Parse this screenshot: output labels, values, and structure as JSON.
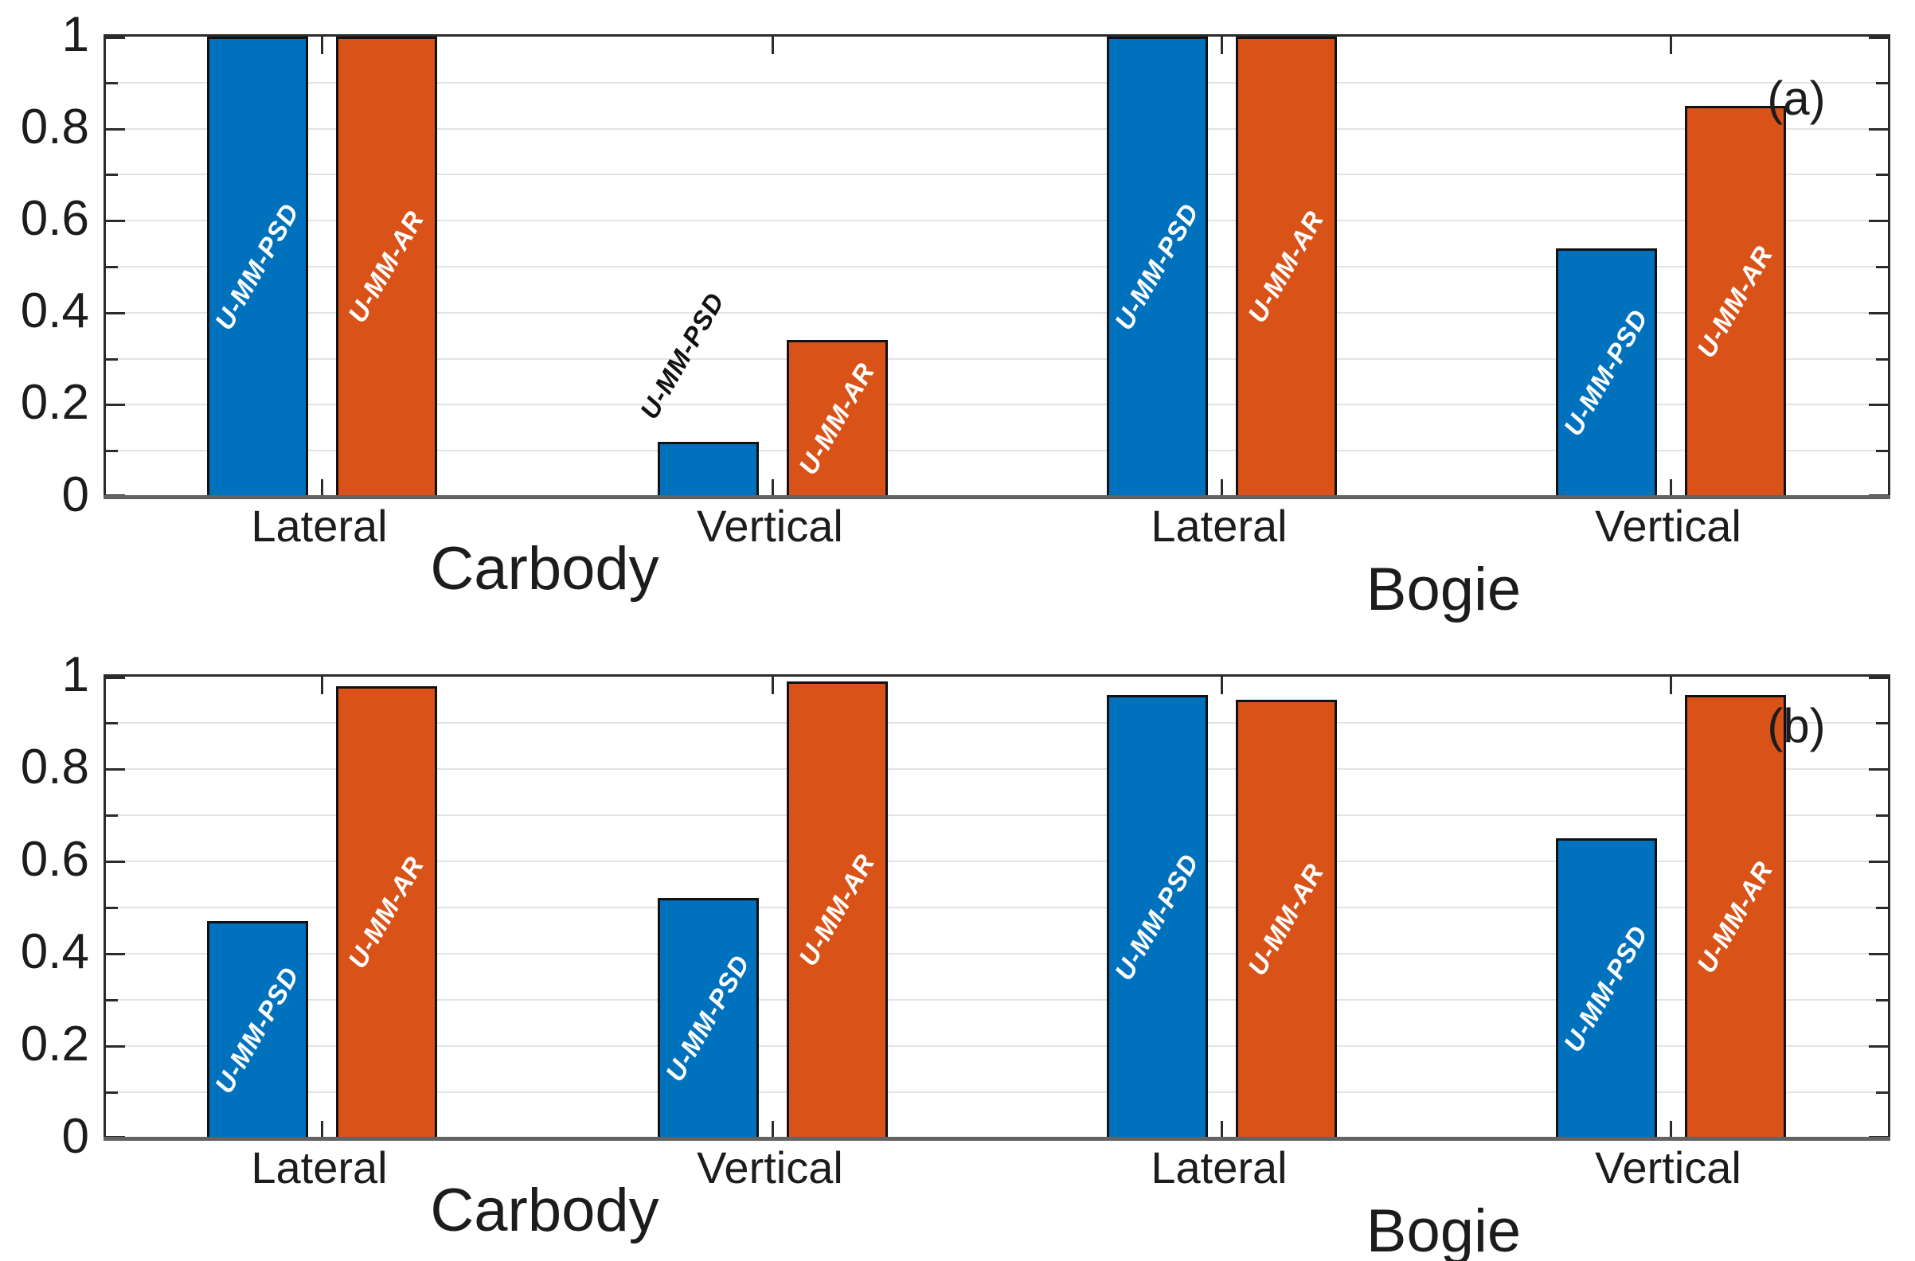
{
  "figure": {
    "background": "#ffffff",
    "series_colors": {
      "U-MM-PSD": "#0072BD",
      "U-MM-AR": "#D95319"
    },
    "bar_edge_color": "#111111",
    "grid_color": "#e3e3e3",
    "axis_color": "#2b2b2b",
    "baseline_color": "#636363",
    "text_color": "#1c1c1c"
  },
  "chart_data": [
    {
      "type": "bar",
      "id": "a",
      "annotation": "(a)",
      "title": "",
      "xlabel": "",
      "ylabel": "",
      "ylim": [
        0,
        1
      ],
      "ytick_values": [
        0,
        0.2,
        0.4,
        0.6,
        0.8,
        1
      ],
      "ytick_labels": [
        "0",
        "0.2",
        "0.4",
        "0.6",
        "0.8",
        "1"
      ],
      "minor_tick_step": 0.1,
      "grid": "horizontal, every 0.1",
      "legend": "none (labels written inside bars)",
      "groups": [
        {
          "label": "Carbody",
          "categories": [
            {
              "label": "Lateral",
              "bars": [
                {
                  "series": "U-MM-PSD",
                  "value": 1.0,
                  "label": "U-MM-PSD",
                  "label_position": "inside",
                  "label_color": "#ffffff"
                },
                {
                  "series": "U-MM-AR",
                  "value": 1.0,
                  "label": "U-MM-AR",
                  "label_position": "inside",
                  "label_color": "#ffffff"
                }
              ]
            },
            {
              "label": "Vertical",
              "bars": [
                {
                  "series": "U-MM-PSD",
                  "value": 0.12,
                  "label": "U-MM-PSD",
                  "label_position": "above",
                  "label_color": "#111111"
                },
                {
                  "series": "U-MM-AR",
                  "value": 0.34,
                  "label": "U-MM-AR",
                  "label_position": "inside",
                  "label_color": "#ffffff"
                }
              ]
            }
          ]
        },
        {
          "label": "Bogie",
          "categories": [
            {
              "label": "Lateral",
              "bars": [
                {
                  "series": "U-MM-PSD",
                  "value": 1.0,
                  "label": "U-MM-PSD",
                  "label_position": "inside",
                  "label_color": "#ffffff"
                },
                {
                  "series": "U-MM-AR",
                  "value": 1.0,
                  "label": "U-MM-AR",
                  "label_position": "inside",
                  "label_color": "#ffffff"
                }
              ]
            },
            {
              "label": "Vertical",
              "bars": [
                {
                  "series": "U-MM-PSD",
                  "value": 0.54,
                  "label": "U-MM-PSD",
                  "label_position": "inside",
                  "label_color": "#ffffff"
                },
                {
                  "series": "U-MM-AR",
                  "value": 0.85,
                  "label": "U-MM-AR",
                  "label_position": "inside",
                  "label_color": "#ffffff"
                }
              ]
            }
          ]
        }
      ]
    },
    {
      "type": "bar",
      "id": "b",
      "annotation": "(b)",
      "title": "",
      "xlabel": "",
      "ylabel": "",
      "ylim": [
        0,
        1
      ],
      "ytick_values": [
        0,
        0.2,
        0.4,
        0.6,
        0.8,
        1
      ],
      "ytick_labels": [
        "0",
        "0.2",
        "0.4",
        "0.6",
        "0.8",
        "1"
      ],
      "minor_tick_step": 0.1,
      "grid": "horizontal, every 0.1",
      "legend": "none (labels written inside bars)",
      "groups": [
        {
          "label": "Carbody",
          "categories": [
            {
              "label": "Lateral",
              "bars": [
                {
                  "series": "U-MM-PSD",
                  "value": 0.47,
                  "label": "U-MM-PSD",
                  "label_position": "inside",
                  "label_color": "#ffffff"
                },
                {
                  "series": "U-MM-AR",
                  "value": 0.98,
                  "label": "U-MM-AR",
                  "label_position": "inside",
                  "label_color": "#ffffff"
                }
              ]
            },
            {
              "label": "Vertical",
              "bars": [
                {
                  "series": "U-MM-PSD",
                  "value": 0.52,
                  "label": "U-MM-PSD",
                  "label_position": "inside",
                  "label_color": "#ffffff"
                },
                {
                  "series": "U-MM-AR",
                  "value": 0.99,
                  "label": "U-MM-AR",
                  "label_position": "inside",
                  "label_color": "#ffffff"
                }
              ]
            }
          ]
        },
        {
          "label": "Bogie",
          "categories": [
            {
              "label": "Lateral",
              "bars": [
                {
                  "series": "U-MM-PSD",
                  "value": 0.96,
                  "label": "U-MM-PSD",
                  "label_position": "inside",
                  "label_color": "#ffffff"
                },
                {
                  "series": "U-MM-AR",
                  "value": 0.95,
                  "label": "U-MM-AR",
                  "label_position": "inside",
                  "label_color": "#ffffff"
                }
              ]
            },
            {
              "label": "Vertical",
              "bars": [
                {
                  "series": "U-MM-PSD",
                  "value": 0.65,
                  "label": "U-MM-PSD",
                  "label_position": "inside",
                  "label_color": "#ffffff"
                },
                {
                  "series": "U-MM-AR",
                  "value": 0.96,
                  "label": "U-MM-AR",
                  "label_position": "inside",
                  "label_color": "#ffffff"
                }
              ]
            }
          ]
        }
      ]
    }
  ]
}
